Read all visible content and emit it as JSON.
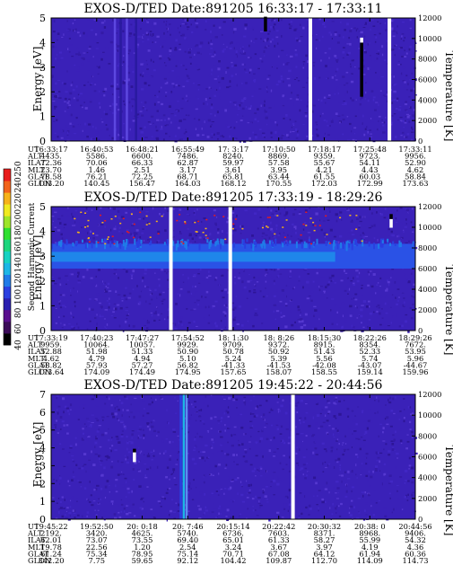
{
  "colors": {
    "background": "#3a21b8",
    "noise": [
      "#3a21b8",
      "#4127c4",
      "#331aa7",
      "#5538d0",
      "#2d1598"
    ],
    "gap": "#ffffff",
    "flash": "#000000",
    "colorbar": [
      "#000000",
      "#3b0b58",
      "#5a0f8e",
      "#2a1fb0",
      "#2a3fe0",
      "#1f7be8",
      "#1cb6e6",
      "#17d2c2",
      "#1ed67e",
      "#2fe030",
      "#9ee52a",
      "#f0ea20",
      "#f6b21a",
      "#f2641c",
      "#e81c1c"
    ]
  },
  "colorbar": {
    "label": "Second Harmonic Current",
    "ticks": [
      "40",
      "60",
      "80",
      "100",
      "120",
      "140",
      "160",
      "180",
      "200",
      "220",
      "240",
      "250"
    ]
  },
  "chart_data": [
    {
      "type": "heatmap",
      "title": "EXOS-D/TED   Date:891205   16:33:17 - 17:33:11",
      "ylabel": "Energy [eV]",
      "y2label": "Temperature [K]",
      "ylim": [
        0,
        5
      ],
      "y2lim": [
        0,
        12000
      ],
      "yticks": [
        "0",
        "1",
        "2",
        "3",
        "4",
        "5"
      ],
      "y2ticks": [
        "0",
        "2000",
        "4000",
        "6000",
        "8000",
        "10000",
        "12000"
      ],
      "gaps": [
        0.707,
        0.924
      ],
      "streaks": [
        [
          0.172,
          "#5d48e0"
        ],
        [
          0.188,
          "#2a1aa0"
        ],
        [
          0.205,
          "#5d48e0"
        ],
        [
          0.23,
          "#2a1aa0"
        ]
      ],
      "features": [
        [
          0.588,
          4.45,
          5.05,
          "#000000"
        ],
        [
          0.852,
          1.8,
          4.0,
          "#000000"
        ],
        [
          0.852,
          4.0,
          4.2,
          "#ffffff"
        ]
      ],
      "table": {
        "labels": [
          "UT",
          "ALT",
          "ILAT",
          "MLT",
          "GLAT",
          "GLON"
        ],
        "columns": [
          [
            "16:33:17",
            "4435.",
            "72.36",
            "23.70",
            "78.58",
            "103.20"
          ],
          [
            "16:40:53",
            "5586.",
            "70.06",
            "1.46",
            "76.21",
            "140.45"
          ],
          [
            "16:48:21",
            "6600.",
            "66.33",
            "2.51",
            "72.25",
            "156.47"
          ],
          [
            "16:55:49",
            "7486.",
            "62.87",
            "3.17",
            "68.71",
            "164.03"
          ],
          [
            "17: 3:17",
            "8240.",
            "59.97",
            "3.61",
            "65.81",
            "168.12"
          ],
          [
            "17:10:50",
            "8869.",
            "57.58",
            "3.95",
            "63.44",
            "170.55"
          ],
          [
            "17:18:17",
            "9359.",
            "55.67",
            "4.21",
            "61.55",
            "172.03"
          ],
          [
            "17:25:48",
            "9723.",
            "54.11",
            "4.43",
            "60.03",
            "172.99"
          ],
          [
            "17:33:11",
            "9956.",
            "52.90",
            "4.62",
            "58.84",
            "173.63"
          ]
        ]
      }
    },
    {
      "type": "heatmap",
      "title": "EXOS-D/TED   Date:891205   17:33:19 - 18:29:26",
      "ylabel": "Energy [eV]",
      "y2label": "Temperature [K]",
      "ylim": [
        0,
        5
      ],
      "y2lim": [
        0,
        12000
      ],
      "yticks": [
        "0",
        "1",
        "2",
        "3",
        "4",
        "5"
      ],
      "y2ticks": [
        "0",
        "2000",
        "4000",
        "6000",
        "8000",
        "10000",
        "12000"
      ],
      "band": {
        "center": 3.0,
        "halfwidth": 0.5
      },
      "gaps": [
        0.324,
        0.487
      ],
      "features": [
        [
          0.933,
          4.15,
          4.5,
          "#ffffff"
        ],
        [
          0.933,
          4.5,
          4.7,
          "#000000"
        ]
      ],
      "table": {
        "labels": [
          "UT",
          "ALT",
          "ILAT",
          "MLT",
          "GLAT",
          "GLON"
        ],
        "columns": [
          [
            "17:33:19",
            "9959.",
            "52.88",
            "4.62",
            "58.82",
            "173.64"
          ],
          [
            "17:40:23",
            "10064.",
            "51.98",
            "4.79",
            "57.93",
            "174.09"
          ],
          [
            "17:47:27",
            "10057.",
            "51.33",
            "4.94",
            "57.27",
            "174.49"
          ],
          [
            "17:54:52",
            "9929.",
            "50.90",
            "5.10",
            "56.82",
            "174.95"
          ],
          [
            "18: 1:30",
            "9709.",
            "50.78",
            "5.24",
            "-41.33",
            "157.65"
          ],
          [
            "18: 8:26",
            "9372.",
            "50.92",
            "5.39",
            "-41.53",
            "158.07"
          ],
          [
            "18:15:30",
            "8915.",
            "51.43",
            "5.56",
            "-42.08",
            "158.55"
          ],
          [
            "18:22:26",
            "8354.",
            "52.33",
            "5.74",
            "-43.07",
            "159.14"
          ],
          [
            "18:29:26",
            "7672.",
            "53.95",
            "5.96",
            "-44.67",
            "159.96"
          ]
        ]
      }
    },
    {
      "type": "heatmap",
      "title": "EXOS-D/TED   Date:891205   19:45:22 - 20:44:56",
      "ylabel": "Energy [eV]",
      "y2label": "Temperature [K]",
      "ylim": [
        0,
        7
      ],
      "y2lim": [
        0,
        12000
      ],
      "yticks": [
        "0",
        "1",
        "2",
        "3",
        "4",
        "5",
        "6",
        "7"
      ],
      "y2ticks": [
        "0",
        "2000",
        "4000",
        "6000",
        "8000",
        "10000",
        "12000"
      ],
      "gaps": [
        0.659
      ],
      "streaks": [
        [
          0.361,
          "#1cb6e6"
        ],
        [
          0.369,
          "#5a8ef0"
        ],
        [
          0.353,
          "#2a3fe0"
        ]
      ],
      "features": [
        [
          0.228,
          3.2,
          3.75,
          "#ffffff"
        ],
        [
          0.228,
          3.75,
          3.95,
          "#000000"
        ]
      ],
      "table": {
        "labels": [
          "UT",
          "ALT",
          "ILAT",
          "MLT",
          "GLAT",
          "GLON"
        ],
        "columns": [
          [
            "19:45:22",
            "2192.",
            "62.01",
            "19.78",
            "61.24",
            "342.20"
          ],
          [
            "19:52:50",
            "3420.",
            "73.07",
            "22.56",
            "75.34",
            "7.75"
          ],
          [
            "20: 0:18",
            "4625.",
            "73.55",
            "1.20",
            "78.95",
            "59.65"
          ],
          [
            "20: 7:46",
            "5740.",
            "69.40",
            "2.54",
            "75.14",
            "92.12"
          ],
          [
            "20:15:14",
            "6736.",
            "65.01",
            "3.24",
            "70.71",
            "104.42"
          ],
          [
            "20:22:42",
            "7603.",
            "61.33",
            "3.67",
            "67.08",
            "109.87"
          ],
          [
            "20:30:32",
            "8371.",
            "58.27",
            "3.97",
            "64.12",
            "112.70"
          ],
          [
            "20:38: 0",
            "8968.",
            "55.99",
            "4.19",
            "61.94",
            "114.09"
          ],
          [
            "20:44:56",
            "9406.",
            "54.32",
            "4.36",
            "60.36",
            "114.73"
          ]
        ]
      }
    }
  ]
}
